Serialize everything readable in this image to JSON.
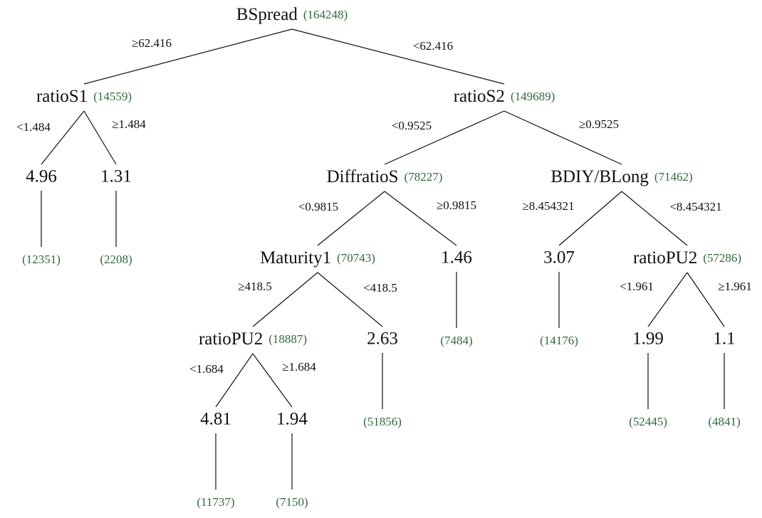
{
  "nodes": [
    {
      "label": "BSpread",
      "count": "(164248)"
    },
    {
      "label": "ratioS1",
      "count": "(14559)"
    },
    {
      "label": "ratioS2",
      "count": "(149689)"
    },
    {
      "label": "4.96",
      "count": "(12351)"
    },
    {
      "label": "1.31",
      "count": "(2208)"
    },
    {
      "label": "DiffratioS",
      "count": "(78227)"
    },
    {
      "label": "BDIY/BLong",
      "count": "(71462)"
    },
    {
      "label": "Maturity1",
      "count": "(70743)"
    },
    {
      "label": "1.46",
      "count": "(7484)"
    },
    {
      "label": "3.07",
      "count": "(14176)"
    },
    {
      "label": "ratioPU2",
      "count": "(57286)"
    },
    {
      "label": "ratioPU2",
      "count": "(18887)"
    },
    {
      "label": "2.63",
      "count": "(51856)"
    },
    {
      "label": "1.99",
      "count": "(52445)"
    },
    {
      "label": "1.1",
      "count": "(4841)"
    },
    {
      "label": "4.81",
      "count": "(11737)"
    },
    {
      "label": "1.94",
      "count": "(7150)"
    }
  ],
  "edges": [
    {
      "label": "≥62.416"
    },
    {
      "label": "<62.416"
    },
    {
      "label": "<1.484"
    },
    {
      "label": "≥1.484"
    },
    {
      "label": "<0.9525"
    },
    {
      "label": "≥0.9525"
    },
    {
      "label": "<0.9815"
    },
    {
      "label": "≥0.9815"
    },
    {
      "label": "≥8.454321"
    },
    {
      "label": "<8.454321"
    },
    {
      "label": "≥418.5"
    },
    {
      "label": "<418.5"
    },
    {
      "label": "<1.961"
    },
    {
      "label": "≥1.961"
    },
    {
      "label": "<1.684"
    },
    {
      "label": "≥1.684"
    }
  ]
}
